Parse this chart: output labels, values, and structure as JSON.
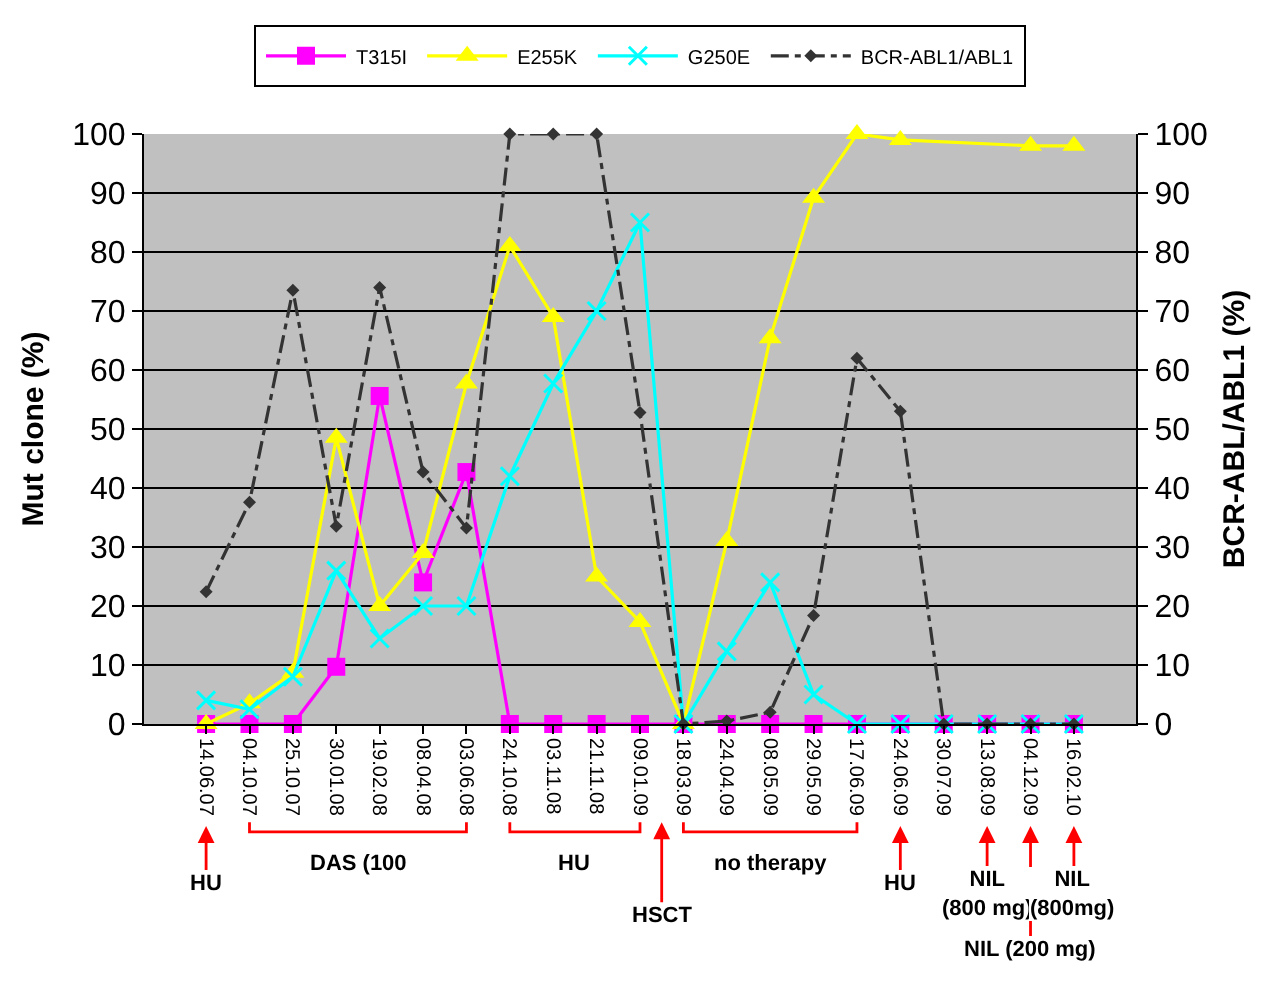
{
  "chart_data": {
    "type": "line",
    "categories": [
      "14.06.07",
      "04.10.07",
      "25.10.07",
      "30.01.08",
      "19.02.08",
      "08.04.08",
      "03.06.08",
      "24.10.08",
      "03.11.08",
      "21.11.08",
      "09.01.09",
      "18.03.09",
      "24.04.09",
      "08.05.09",
      "29.05.09",
      "17.06.09",
      "24.06.09",
      "30.07.09",
      "13.08.09",
      "04.12.09",
      "16.02.10"
    ],
    "ylabel": "Mut clone (%)",
    "y2label": "BCR-ABL/ABL1 (%)",
    "ylim": [
      0,
      100
    ],
    "yticks": [
      0,
      10,
      20,
      30,
      40,
      50,
      60,
      70,
      80,
      90,
      100
    ],
    "y2lim": [
      0,
      100
    ],
    "y2ticks": [
      0,
      10,
      20,
      30,
      40,
      50,
      60,
      70,
      80,
      90,
      100
    ],
    "grid": "y",
    "legend": "top",
    "series": [
      {
        "name": "T315I",
        "color": "#ff00ff",
        "marker": "square",
        "line_style": "solid",
        "values": [
          0,
          0,
          0,
          9.7,
          55.6,
          24,
          42.7,
          0,
          0,
          0,
          0,
          0,
          0,
          0,
          0,
          0,
          0,
          0,
          0,
          0,
          0
        ]
      },
      {
        "name": "E255K",
        "color": "#ffff00",
        "marker": "triangle",
        "line_style": "solid",
        "x": [
          "14.06.07",
          "04.10.07",
          "25.10.07",
          "30.01.08",
          "19.02.08",
          "08.04.08",
          "03.06.08",
          "24.10.08",
          "03.11.08",
          "21.11.08",
          "09.01.09",
          "18.03.09",
          "24.04.09",
          "08.05.09",
          "29.05.09",
          "17.06.09",
          "24.06.09",
          "04.12.09",
          "16.02.10"
        ],
        "values": [
          0,
          3.5,
          8.7,
          48.5,
          20,
          29,
          57.7,
          81,
          69,
          25,
          17.3,
          0,
          31,
          65.4,
          89.2,
          100,
          99,
          98,
          98
        ]
      },
      {
        "name": "G250E",
        "color": "#00ffff",
        "marker": "cross",
        "line_style": "solid",
        "values": [
          4,
          2.5,
          8,
          26,
          14.5,
          20,
          20,
          42,
          57.7,
          70,
          85,
          0,
          12.3,
          24,
          5,
          0,
          0,
          0,
          0,
          0,
          0
        ]
      },
      {
        "name": "BCR-ABL1/ABL1",
        "color": "#333333",
        "marker": "diamond",
        "line_style": "dashed",
        "axis": "y2",
        "values": [
          22.4,
          37.6,
          73.5,
          33.5,
          74,
          42.7,
          33.2,
          100,
          100,
          100,
          52.8,
          0,
          0.5,
          2,
          18.4,
          62,
          53,
          0,
          0,
          0,
          0
        ]
      }
    ],
    "annotations": [
      "HU",
      "DAS (100",
      "HU",
      "HSCT",
      "no therapy",
      "HU",
      "NIL (800 mg)",
      "NIL (200 mg)",
      "NIL (800mg)"
    ]
  }
}
